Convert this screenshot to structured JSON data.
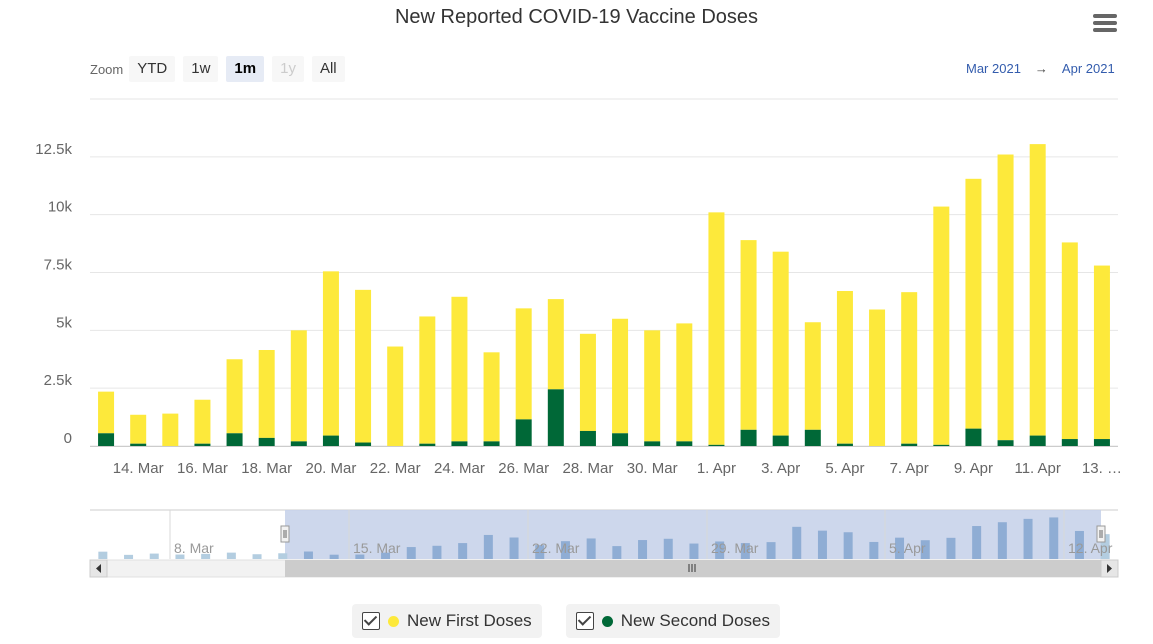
{
  "colors": {
    "first": "#fde93b",
    "second": "#006837",
    "navigator_bar": "#9fbad6",
    "navigator_mask": "#c8d3ea"
  },
  "toolbar": {
    "zoom_label": "Zoom",
    "buttons": [
      {
        "label": "YTD",
        "state": "normal"
      },
      {
        "label": "1w",
        "state": "normal"
      },
      {
        "label": "1m",
        "state": "active"
      },
      {
        "label": "1y",
        "state": "disabled"
      },
      {
        "label": "All",
        "state": "normal"
      }
    ],
    "range_from": "Mar 2021",
    "range_arrow": "→",
    "range_to": "Apr 2021",
    "menu_icon": "hamburger-menu-icon"
  },
  "chart_data": {
    "type": "bar",
    "title": "New Reported COVID-19 Vaccine Doses",
    "stacked": true,
    "ylim": [
      0,
      15000
    ],
    "yticks": [
      0,
      2500,
      5000,
      7500,
      10000,
      12500
    ],
    "ytick_labels": [
      "0",
      "2.5k",
      "5k",
      "7.5k",
      "10k",
      "12.5k"
    ],
    "xtick_labels": [
      "14. Mar",
      "16. Mar",
      "18. Mar",
      "20. Mar",
      "22. Mar",
      "24. Mar",
      "26. Mar",
      "28. Mar",
      "30. Mar",
      "1. Apr",
      "3. Apr",
      "5. Apr",
      "7. Apr",
      "9. Apr",
      "11. Apr",
      "13. …"
    ],
    "categories": [
      "13. Mar",
      "14. Mar",
      "15. Mar",
      "16. Mar",
      "17. Mar",
      "18. Mar",
      "19. Mar",
      "20. Mar",
      "21. Mar",
      "22. Mar",
      "23. Mar",
      "24. Mar",
      "25. Mar",
      "26. Mar",
      "27. Mar",
      "28. Mar",
      "29. Mar",
      "30. Mar",
      "31. Mar",
      "1. Apr",
      "2. Apr",
      "3. Apr",
      "4. Apr",
      "5. Apr",
      "6. Apr",
      "7. Apr",
      "8. Apr",
      "9. Apr",
      "10. Apr",
      "11. Apr",
      "12. Apr",
      "13. Apr"
    ],
    "series": [
      {
        "name": "New First Doses",
        "values": [
          1800,
          1250,
          1400,
          1900,
          3200,
          3800,
          4800,
          7100,
          6600,
          4300,
          5500,
          6250,
          3850,
          4800,
          3900,
          4200,
          4950,
          4800,
          5100,
          10050,
          8200,
          7950,
          4650,
          6600,
          5900,
          6550,
          10300,
          10800,
          12350,
          12600,
          8500,
          7500
        ]
      },
      {
        "name": "New Second Doses",
        "values": [
          550,
          100,
          0,
          100,
          550,
          350,
          200,
          450,
          150,
          0,
          100,
          200,
          200,
          1150,
          2450,
          650,
          550,
          200,
          200,
          50,
          700,
          450,
          700,
          100,
          0,
          100,
          50,
          750,
          250,
          450,
          300,
          300
        ]
      }
    ],
    "navigator": {
      "labels": [
        "8. Mar",
        "15. Mar",
        "22. Mar",
        "29. Mar",
        "5. Apr",
        "12. Apr"
      ],
      "values": [
        2300,
        1300,
        1700,
        1400,
        1600,
        2000,
        1500,
        1800,
        2350,
        1350,
        1400,
        2000,
        3750,
        4150,
        5000,
        7550,
        6750,
        4350,
        5600,
        6450,
        4050,
        5950,
        6350,
        4850,
        5500,
        5000,
        5300,
        10100,
        8900,
        8400,
        5350,
        6700,
        5900,
        6650,
        10350,
        11550,
        12600,
        13050,
        8800,
        7800
      ]
    }
  },
  "legend": {
    "items": [
      {
        "label": "New First Doses"
      },
      {
        "label": "New Second Doses"
      }
    ]
  }
}
